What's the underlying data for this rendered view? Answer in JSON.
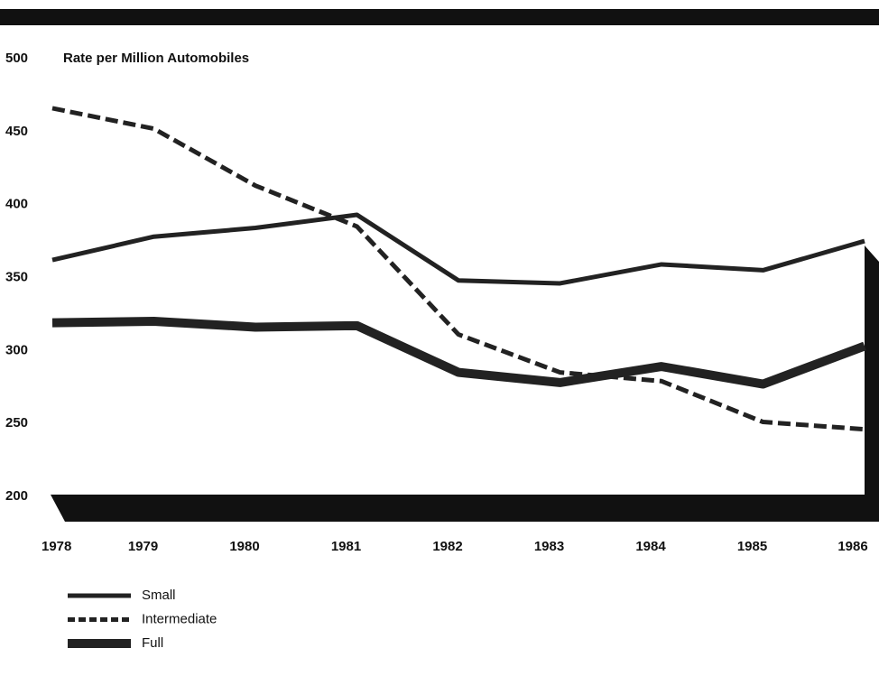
{
  "chart_data": {
    "type": "line",
    "title": "Rate per Million Automobiles",
    "categories": [
      "1978",
      "1979",
      "1980",
      "1981",
      "1982",
      "1983",
      "1984",
      "1985",
      "1986"
    ],
    "series": [
      {
        "name": "Small",
        "color": "#222",
        "style": "solid",
        "values": [
          362,
          378,
          384,
          393,
          348,
          346,
          359,
          355,
          375
        ]
      },
      {
        "name": "Intermediate",
        "color": "#222",
        "style": "dashed",
        "values": [
          466,
          452,
          413,
          385,
          311,
          285,
          279,
          251,
          246
        ]
      },
      {
        "name": "Full",
        "color": "#222",
        "style": "thick",
        "values": [
          319,
          320,
          316,
          317,
          285,
          278,
          289,
          277,
          303
        ]
      }
    ],
    "ylim": [
      200,
      500
    ],
    "yticks": [
      200,
      250,
      300,
      350,
      400,
      450,
      500
    ],
    "grid": false
  }
}
